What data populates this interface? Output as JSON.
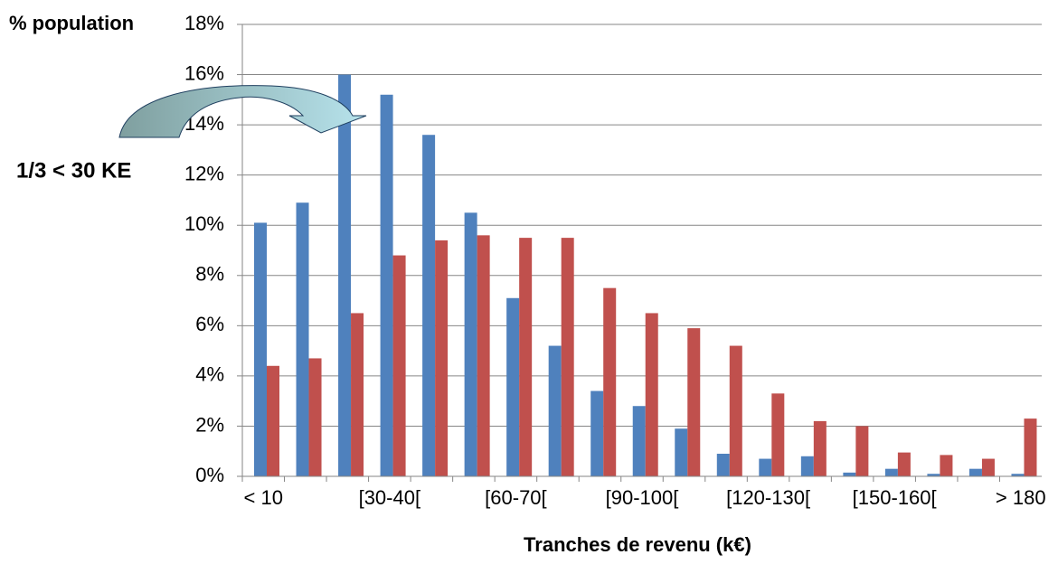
{
  "chart_data": {
    "type": "bar",
    "y_label": "% population",
    "x_label": "Tranches de revenu (k€)",
    "annotation": "1/3 < 30 KE",
    "categories": [
      "< 10",
      null,
      null,
      "[30-40[",
      null,
      null,
      "[60-70[",
      null,
      null,
      "[90-100[",
      null,
      null,
      "[120-130[",
      null,
      null,
      "[150-160[",
      null,
      null,
      "> 180"
    ],
    "series": [
      {
        "color": "#4f81bd",
        "values": [
          10.1,
          10.9,
          16.0,
          15.2,
          13.6,
          10.5,
          7.1,
          5.2,
          3.4,
          2.8,
          1.9,
          0.9,
          0.7,
          0.8,
          0.15,
          0.3,
          0.1,
          0.3,
          0.1
        ]
      },
      {
        "color": "#c0504d",
        "values": [
          4.4,
          4.7,
          6.5,
          8.8,
          9.4,
          9.6,
          9.5,
          9.5,
          7.5,
          6.5,
          5.9,
          5.2,
          3.3,
          2.2,
          2.0,
          0.95,
          0.85,
          0.7,
          2.3
        ]
      }
    ],
    "ylim": [
      0,
      18
    ],
    "yticks": [
      {
        "value": 0,
        "label": "0%"
      },
      {
        "value": 2,
        "label": "2%"
      },
      {
        "value": 4,
        "label": "4%"
      },
      {
        "value": 6,
        "label": "6%"
      },
      {
        "value": 8,
        "label": "8%"
      },
      {
        "value": 10,
        "label": "10%"
      },
      {
        "value": 12,
        "label": "12%"
      },
      {
        "value": 14,
        "label": "14%"
      },
      {
        "value": 16,
        "label": "16%"
      },
      {
        "value": 18,
        "label": "18%"
      }
    ],
    "grid": true
  }
}
